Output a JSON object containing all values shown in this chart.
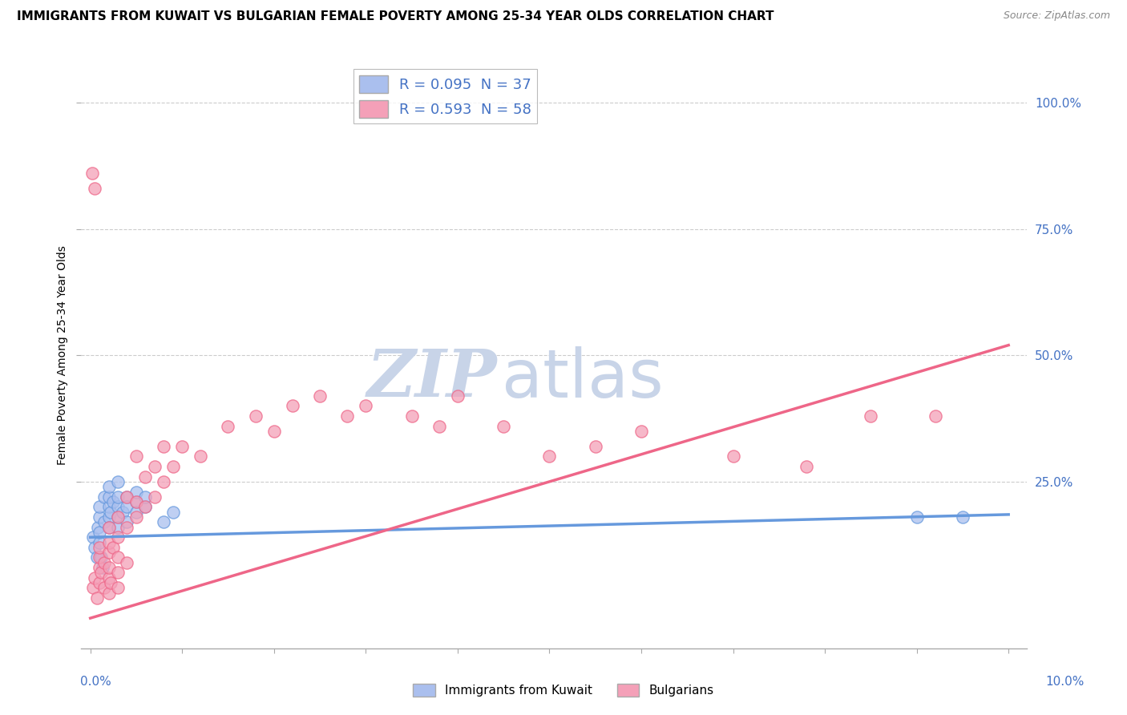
{
  "title": "IMMIGRANTS FROM KUWAIT VS BULGARIAN FEMALE POVERTY AMONG 25-34 YEAR OLDS CORRELATION CHART",
  "source": "Source: ZipAtlas.com",
  "ylabel": "Female Poverty Among 25-34 Year Olds",
  "ytick_labels": [
    "25.0%",
    "50.0%",
    "75.0%",
    "100.0%"
  ],
  "ytick_values": [
    0.25,
    0.5,
    0.75,
    1.0
  ],
  "xlim": [
    -0.001,
    0.102
  ],
  "ylim": [
    -0.08,
    1.08
  ],
  "blue_color": "#6699dd",
  "pink_color": "#ee6688",
  "blue_fill": "#aabfee",
  "pink_fill": "#f4a0b8",
  "legend_blue_fill": "#aabfee",
  "legend_pink_fill": "#f4a0b8",
  "blue_r": "0.095",
  "blue_n": "37",
  "pink_r": "0.593",
  "pink_n": "58",
  "legend_label1": "R = 0.095  N = 37",
  "legend_label2": "R = 0.593  N = 58",
  "bottom_label1": "Immigrants from Kuwait",
  "bottom_label2": "Bulgarians",
  "watermark_zip": "ZIP",
  "watermark_atlas": "atlas",
  "watermark_color": "#c8d4e8",
  "watermark_fontsize": 60,
  "grid_color": "#cccccc",
  "bg_color": "#ffffff",
  "title_fontsize": 11,
  "axis_label_fontsize": 10,
  "tick_fontsize": 11,
  "blue_scatter": [
    [
      0.0003,
      0.14
    ],
    [
      0.0005,
      0.12
    ],
    [
      0.0007,
      0.1
    ],
    [
      0.0008,
      0.16
    ],
    [
      0.001,
      0.13
    ],
    [
      0.001,
      0.18
    ],
    [
      0.001,
      0.15
    ],
    [
      0.001,
      0.2
    ],
    [
      0.0012,
      0.1
    ],
    [
      0.0013,
      0.08
    ],
    [
      0.0015,
      0.17
    ],
    [
      0.0015,
      0.22
    ],
    [
      0.002,
      0.18
    ],
    [
      0.002,
      0.2
    ],
    [
      0.002,
      0.22
    ],
    [
      0.002,
      0.16
    ],
    [
      0.002,
      0.24
    ],
    [
      0.0022,
      0.19
    ],
    [
      0.0025,
      0.21
    ],
    [
      0.003,
      0.2
    ],
    [
      0.003,
      0.18
    ],
    [
      0.003,
      0.22
    ],
    [
      0.003,
      0.16
    ],
    [
      0.003,
      0.25
    ],
    [
      0.0035,
      0.19
    ],
    [
      0.004,
      0.22
    ],
    [
      0.004,
      0.2
    ],
    [
      0.004,
      0.17
    ],
    [
      0.005,
      0.21
    ],
    [
      0.005,
      0.19
    ],
    [
      0.005,
      0.23
    ],
    [
      0.006,
      0.2
    ],
    [
      0.006,
      0.22
    ],
    [
      0.008,
      0.17
    ],
    [
      0.009,
      0.19
    ],
    [
      0.09,
      0.18
    ],
    [
      0.095,
      0.18
    ]
  ],
  "pink_scatter": [
    [
      0.0002,
      0.86
    ],
    [
      0.0005,
      0.83
    ],
    [
      0.0003,
      0.04
    ],
    [
      0.0005,
      0.06
    ],
    [
      0.0007,
      0.02
    ],
    [
      0.001,
      0.08
    ],
    [
      0.001,
      0.05
    ],
    [
      0.001,
      0.1
    ],
    [
      0.001,
      0.12
    ],
    [
      0.0012,
      0.07
    ],
    [
      0.0015,
      0.04
    ],
    [
      0.0015,
      0.09
    ],
    [
      0.002,
      0.06
    ],
    [
      0.002,
      0.03
    ],
    [
      0.002,
      0.11
    ],
    [
      0.002,
      0.08
    ],
    [
      0.002,
      0.13
    ],
    [
      0.002,
      0.16
    ],
    [
      0.0022,
      0.05
    ],
    [
      0.0025,
      0.12
    ],
    [
      0.003,
      0.07
    ],
    [
      0.003,
      0.04
    ],
    [
      0.003,
      0.14
    ],
    [
      0.003,
      0.1
    ],
    [
      0.003,
      0.18
    ],
    [
      0.004,
      0.22
    ],
    [
      0.004,
      0.16
    ],
    [
      0.004,
      0.09
    ],
    [
      0.005,
      0.3
    ],
    [
      0.005,
      0.21
    ],
    [
      0.005,
      0.18
    ],
    [
      0.006,
      0.26
    ],
    [
      0.006,
      0.2
    ],
    [
      0.007,
      0.28
    ],
    [
      0.007,
      0.22
    ],
    [
      0.008,
      0.32
    ],
    [
      0.008,
      0.25
    ],
    [
      0.009,
      0.28
    ],
    [
      0.01,
      0.32
    ],
    [
      0.012,
      0.3
    ],
    [
      0.015,
      0.36
    ],
    [
      0.018,
      0.38
    ],
    [
      0.02,
      0.35
    ],
    [
      0.022,
      0.4
    ],
    [
      0.025,
      0.42
    ],
    [
      0.028,
      0.38
    ],
    [
      0.03,
      0.4
    ],
    [
      0.035,
      0.38
    ],
    [
      0.038,
      0.36
    ],
    [
      0.04,
      0.42
    ],
    [
      0.045,
      0.36
    ],
    [
      0.05,
      0.3
    ],
    [
      0.055,
      0.32
    ],
    [
      0.06,
      0.35
    ],
    [
      0.07,
      0.3
    ],
    [
      0.078,
      0.28
    ],
    [
      0.085,
      0.38
    ],
    [
      0.092,
      0.38
    ]
  ],
  "blue_line": {
    "x0": 0.0,
    "y0": 0.14,
    "x1": 0.1,
    "y1": 0.185
  },
  "pink_line": {
    "x0": 0.0,
    "y0": -0.02,
    "x1": 0.1,
    "y1": 0.52
  }
}
